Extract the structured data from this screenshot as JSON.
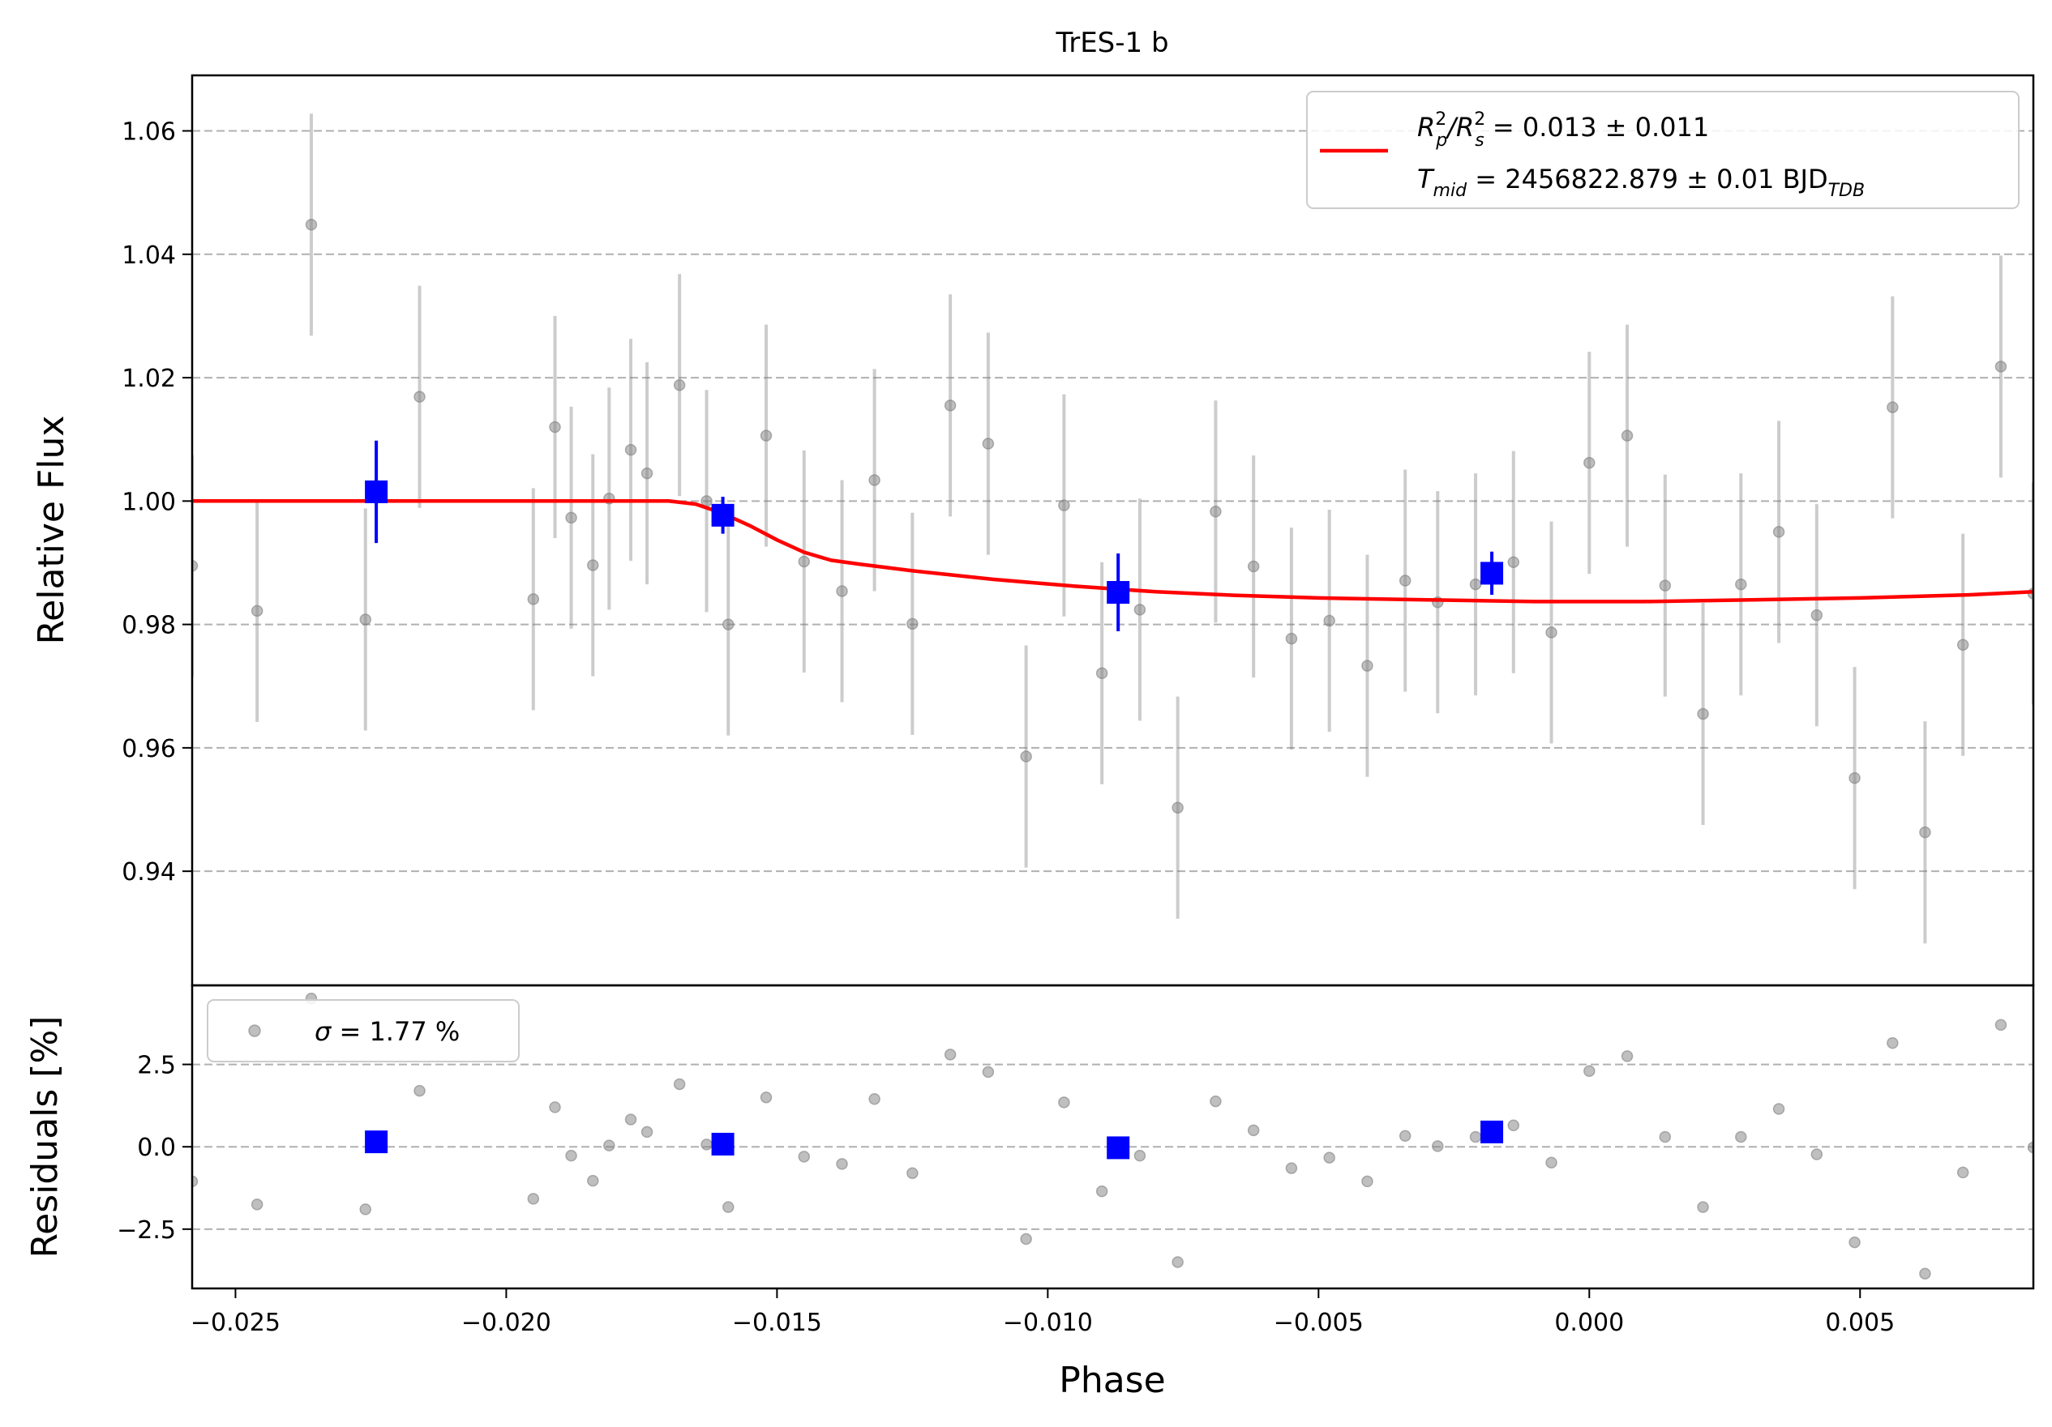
{
  "chart_data": {
    "type": "scatter",
    "title": "TrES-1 b",
    "xlabel": "Phase",
    "xlim": [
      -0.0258,
      0.0082
    ],
    "xticks": [
      "−0.025",
      "−0.020",
      "−0.015",
      "−0.010",
      "−0.005",
      "0.000",
      "0.005"
    ],
    "xtick_values": [
      -0.025,
      -0.02,
      -0.015,
      -0.01,
      -0.005,
      0.0,
      0.005
    ],
    "colors": {
      "raw": "#808080",
      "binned": "#0000ff",
      "model": "#ff0000",
      "grid": "#b0b0b0"
    },
    "top_panel": {
      "ylabel": "Relative Flux",
      "ylim": [
        0.9215,
        1.069
      ],
      "yticks": [
        "0.94",
        "0.96",
        "0.98",
        "1.00",
        "1.02",
        "1.04",
        "1.06"
      ],
      "ytick_values": [
        0.94,
        0.96,
        0.98,
        1.0,
        1.02,
        1.04,
        1.06
      ],
      "grid": true,
      "legend": {
        "position": "upper-right",
        "line1_base": "R",
        "line1_sub1": "p",
        "line1_sup1": "2",
        "line1_sep": "/R",
        "line1_sub2": "s",
        "line1_sup2": "2",
        "line1_value": " = 0.013 ± 0.011",
        "line2_base": "T",
        "line2_sub": "mid",
        "line2_value": " = 2456822.879 ± 0.01 BJD",
        "line2_unit_sub": "TDB"
      },
      "raw_points": [
        {
          "x": -0.0258,
          "y": 0.9895,
          "err": 0.018
        },
        {
          "x": -0.0246,
          "y": 0.9822,
          "err": 0.018
        },
        {
          "x": -0.0236,
          "y": 1.0448,
          "err": 0.018
        },
        {
          "x": -0.0226,
          "y": 0.9808,
          "err": 0.018
        },
        {
          "x": -0.0216,
          "y": 1.0169,
          "err": 0.018
        },
        {
          "x": -0.0195,
          "y": 0.9841,
          "err": 0.018
        },
        {
          "x": -0.0191,
          "y": 1.012,
          "err": 0.018
        },
        {
          "x": -0.0188,
          "y": 0.9973,
          "err": 0.018
        },
        {
          "x": -0.0184,
          "y": 0.9896,
          "err": 0.018
        },
        {
          "x": -0.0181,
          "y": 1.0004,
          "err": 0.018
        },
        {
          "x": -0.0177,
          "y": 1.0083,
          "err": 0.018
        },
        {
          "x": -0.0174,
          "y": 1.0045,
          "err": 0.018
        },
        {
          "x": -0.0168,
          "y": 1.0188,
          "err": 0.018
        },
        {
          "x": -0.0163,
          "y": 1.0,
          "err": 0.018
        },
        {
          "x": -0.0159,
          "y": 0.98,
          "err": 0.018
        },
        {
          "x": -0.0152,
          "y": 1.0106,
          "err": 0.018
        },
        {
          "x": -0.0145,
          "y": 0.9902,
          "err": 0.018
        },
        {
          "x": -0.0138,
          "y": 0.9854,
          "err": 0.018
        },
        {
          "x": -0.0132,
          "y": 1.0034,
          "err": 0.018
        },
        {
          "x": -0.0125,
          "y": 0.9801,
          "err": 0.018
        },
        {
          "x": -0.0118,
          "y": 1.0155,
          "err": 0.018
        },
        {
          "x": -0.0111,
          "y": 1.0093,
          "err": 0.018
        },
        {
          "x": -0.0104,
          "y": 0.9586,
          "err": 0.018
        },
        {
          "x": -0.0097,
          "y": 0.9993,
          "err": 0.018
        },
        {
          "x": -0.009,
          "y": 0.9721,
          "err": 0.018
        },
        {
          "x": -0.0083,
          "y": 0.9824,
          "err": 0.018
        },
        {
          "x": -0.0076,
          "y": 0.9503,
          "err": 0.018
        },
        {
          "x": -0.0069,
          "y": 0.9983,
          "err": 0.018
        },
        {
          "x": -0.0062,
          "y": 0.9894,
          "err": 0.018
        },
        {
          "x": -0.0055,
          "y": 0.9777,
          "err": 0.018
        },
        {
          "x": -0.0048,
          "y": 0.9806,
          "err": 0.018
        },
        {
          "x": -0.0041,
          "y": 0.9733,
          "err": 0.018
        },
        {
          "x": -0.0034,
          "y": 0.9871,
          "err": 0.018
        },
        {
          "x": -0.0028,
          "y": 0.9836,
          "err": 0.018
        },
        {
          "x": -0.0021,
          "y": 0.9865,
          "err": 0.018
        },
        {
          "x": -0.0014,
          "y": 0.9901,
          "err": 0.018
        },
        {
          "x": -0.0007,
          "y": 0.9787,
          "err": 0.018
        },
        {
          "x": 0.0,
          "y": 1.0062,
          "err": 0.018
        },
        {
          "x": 0.0007,
          "y": 1.0106,
          "err": 0.018
        },
        {
          "x": 0.0014,
          "y": 0.9863,
          "err": 0.018
        },
        {
          "x": 0.0021,
          "y": 0.9655,
          "err": 0.018
        },
        {
          "x": 0.0028,
          "y": 0.9865,
          "err": 0.018
        },
        {
          "x": 0.0035,
          "y": 0.995,
          "err": 0.018
        },
        {
          "x": 0.0042,
          "y": 0.9815,
          "err": 0.018
        },
        {
          "x": 0.0049,
          "y": 0.9551,
          "err": 0.018
        },
        {
          "x": 0.0056,
          "y": 1.0152,
          "err": 0.018
        },
        {
          "x": 0.0062,
          "y": 0.9463,
          "err": 0.018
        },
        {
          "x": 0.0069,
          "y": 0.9767,
          "err": 0.018
        },
        {
          "x": 0.0076,
          "y": 1.0218,
          "err": 0.018
        },
        {
          "x": 0.0082,
          "y": 0.985,
          "err": 0.018
        }
      ],
      "binned_points": [
        {
          "x": -0.0224,
          "y": 1.0015,
          "err": 0.0083
        },
        {
          "x": -0.016,
          "y": 0.9977,
          "err": 0.003
        },
        {
          "x": -0.0087,
          "y": 0.9852,
          "err": 0.0063
        },
        {
          "x": -0.0018,
          "y": 0.9883,
          "err": 0.0035
        }
      ],
      "model_curve": [
        {
          "x": -0.0258,
          "y": 1.0
        },
        {
          "x": -0.017,
          "y": 1.0
        },
        {
          "x": -0.0165,
          "y": 0.9995
        },
        {
          "x": -0.016,
          "y": 0.998
        },
        {
          "x": -0.0155,
          "y": 0.996
        },
        {
          "x": -0.015,
          "y": 0.9937
        },
        {
          "x": -0.0145,
          "y": 0.9917
        },
        {
          "x": -0.014,
          "y": 0.9904
        },
        {
          "x": -0.0135,
          "y": 0.9898
        },
        {
          "x": -0.0125,
          "y": 0.9887
        },
        {
          "x": -0.011,
          "y": 0.9873
        },
        {
          "x": -0.0095,
          "y": 0.9862
        },
        {
          "x": -0.008,
          "y": 0.9853
        },
        {
          "x": -0.0065,
          "y": 0.9847
        },
        {
          "x": -0.005,
          "y": 0.9843
        },
        {
          "x": -0.003,
          "y": 0.984
        },
        {
          "x": -0.001,
          "y": 0.9837
        },
        {
          "x": 0.001,
          "y": 0.9837
        },
        {
          "x": 0.003,
          "y": 0.984
        },
        {
          "x": 0.005,
          "y": 0.9843
        },
        {
          "x": 0.007,
          "y": 0.9848
        },
        {
          "x": 0.0082,
          "y": 0.9853
        }
      ]
    },
    "bottom_panel": {
      "ylabel": "Residuals [%]",
      "ylim": [
        -4.3,
        4.9
      ],
      "yticks": [
        "−2.5",
        "0.0",
        "2.5"
      ],
      "ytick_values": [
        -2.5,
        0.0,
        2.5
      ],
      "grid": true,
      "legend": {
        "position": "upper-left",
        "label_symbol": "σ",
        "label_value": " = 1.77 %"
      },
      "raw_points": [
        {
          "x": -0.0258,
          "y": -1.05
        },
        {
          "x": -0.0246,
          "y": -1.75
        },
        {
          "x": -0.0236,
          "y": 4.5
        },
        {
          "x": -0.0226,
          "y": -1.9
        },
        {
          "x": -0.0216,
          "y": 1.7
        },
        {
          "x": -0.0195,
          "y": -1.58
        },
        {
          "x": -0.0191,
          "y": 1.2
        },
        {
          "x": -0.0188,
          "y": -0.27
        },
        {
          "x": -0.0184,
          "y": -1.03
        },
        {
          "x": -0.0181,
          "y": 0.04
        },
        {
          "x": -0.0177,
          "y": 0.83
        },
        {
          "x": -0.0174,
          "y": 0.45
        },
        {
          "x": -0.0168,
          "y": 1.9
        },
        {
          "x": -0.0163,
          "y": 0.07
        },
        {
          "x": -0.0159,
          "y": -1.83
        },
        {
          "x": -0.0152,
          "y": 1.5
        },
        {
          "x": -0.0145,
          "y": -0.3
        },
        {
          "x": -0.0138,
          "y": -0.52
        },
        {
          "x": -0.0132,
          "y": 1.45
        },
        {
          "x": -0.0125,
          "y": -0.8
        },
        {
          "x": -0.0118,
          "y": 2.8
        },
        {
          "x": -0.0111,
          "y": 2.27
        },
        {
          "x": -0.0104,
          "y": -2.8
        },
        {
          "x": -0.0097,
          "y": 1.35
        },
        {
          "x": -0.009,
          "y": -1.35
        },
        {
          "x": -0.0083,
          "y": -0.27
        },
        {
          "x": -0.0076,
          "y": -3.5
        },
        {
          "x": -0.0069,
          "y": 1.38
        },
        {
          "x": -0.0062,
          "y": 0.5
        },
        {
          "x": -0.0055,
          "y": -0.65
        },
        {
          "x": -0.0048,
          "y": -0.33
        },
        {
          "x": -0.0041,
          "y": -1.05
        },
        {
          "x": -0.0034,
          "y": 0.33
        },
        {
          "x": -0.0028,
          "y": 0.02
        },
        {
          "x": -0.0021,
          "y": 0.3
        },
        {
          "x": -0.0014,
          "y": 0.65
        },
        {
          "x": -0.0007,
          "y": -0.48
        },
        {
          "x": 0.0,
          "y": 2.3
        },
        {
          "x": 0.0007,
          "y": 2.75
        },
        {
          "x": 0.0014,
          "y": 0.3
        },
        {
          "x": 0.0021,
          "y": -1.83
        },
        {
          "x": 0.0028,
          "y": 0.3
        },
        {
          "x": 0.0035,
          "y": 1.15
        },
        {
          "x": 0.0042,
          "y": -0.23
        },
        {
          "x": 0.0049,
          "y": -2.9
        },
        {
          "x": 0.0056,
          "y": 3.15
        },
        {
          "x": 0.0062,
          "y": -3.85
        },
        {
          "x": 0.0069,
          "y": -0.78
        },
        {
          "x": 0.0076,
          "y": 3.7
        },
        {
          "x": 0.0082,
          "y": -0.02
        }
      ],
      "binned_points": [
        {
          "x": -0.0224,
          "y": 0.15
        },
        {
          "x": -0.016,
          "y": 0.08
        },
        {
          "x": -0.0087,
          "y": -0.03
        },
        {
          "x": -0.0018,
          "y": 0.45
        }
      ]
    }
  }
}
